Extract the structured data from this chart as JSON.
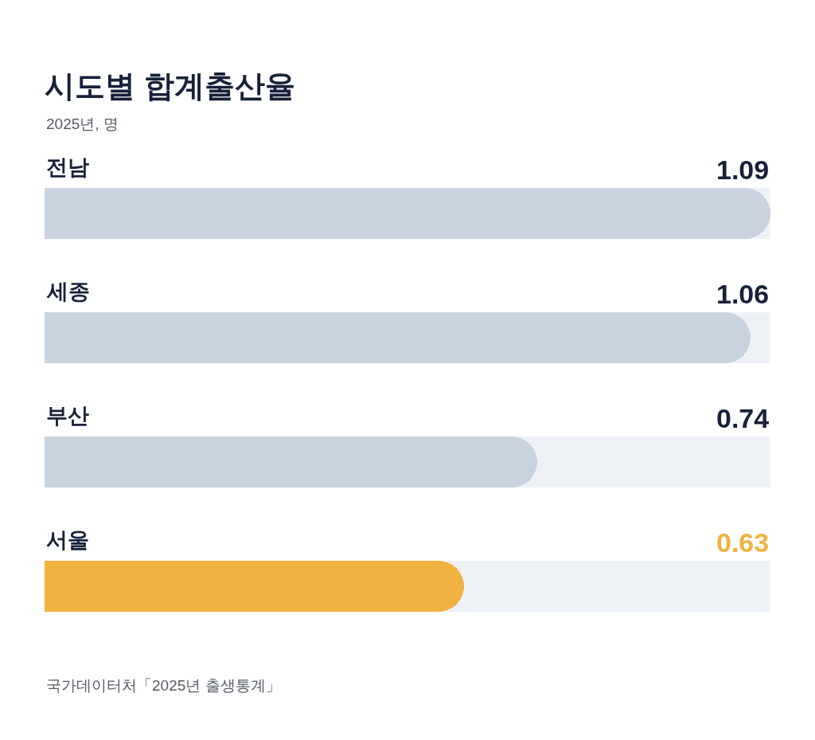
{
  "chart_data": {
    "type": "bar",
    "orientation": "horizontal",
    "title": "시도별 합계출산율",
    "subtitle": "2025년, 명",
    "categories": [
      "전남",
      "세종",
      "부산",
      "서울"
    ],
    "values": [
      1.09,
      1.06,
      0.74,
      0.63
    ],
    "colors": [
      "#c9d3e0",
      "#c9d3e0",
      "#c9d3e0",
      "#f0b341"
    ],
    "data_labels": true,
    "annotations": [
      "국가데이터처「2025년 출생통계」"
    ]
  }
}
